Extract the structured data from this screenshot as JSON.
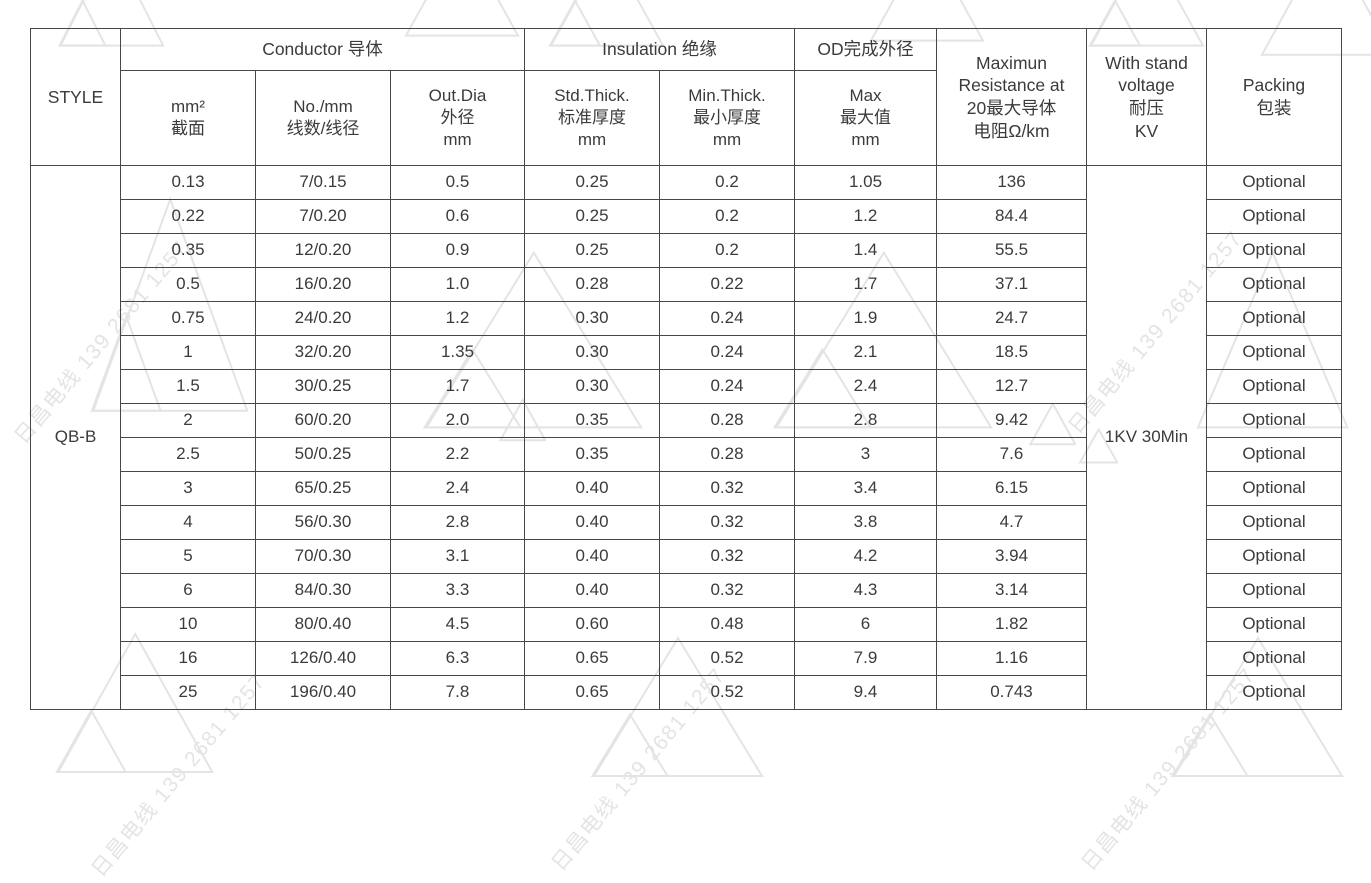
{
  "page": {
    "background": "#ffffff",
    "border_color": "#474747",
    "text_color": "#3b3b3b",
    "watermark_color": "#e4e4e4"
  },
  "watermark": {
    "text": "日昌电线 139 2681 1257"
  },
  "table": {
    "style_header": "STYLE",
    "style_value": "QB-B",
    "voltage_value": "1KV 30Min",
    "group_headers": {
      "conductor": "Conductor 导体",
      "insulation": "Insulation 绝缘",
      "od": "OD完成外径"
    },
    "col_headers": {
      "mm2": "mm²\n截面",
      "no_mm": "No./mm\n线数/线径",
      "out_dia": "Out.Dia\n外径\nmm",
      "std_thick": "Std.Thick.\n标准厚度\nmm",
      "min_thick": "Min.Thick.\n最小厚度\nmm",
      "max": "Max\n最大值\nmm",
      "resistance": "Maximun\nResistance at\n20最大导体\n电阻Ω/km",
      "voltage": "With stand\nvoltage\n耐压\nKV",
      "packing": "Packing\n包装"
    },
    "rows": [
      [
        "0.13",
        "7/0.15",
        "0.5",
        "0.25",
        "0.2",
        "1.05",
        "136",
        "Optional"
      ],
      [
        "0.22",
        "7/0.20",
        "0.6",
        "0.25",
        "0.2",
        "1.2",
        "84.4",
        "Optional"
      ],
      [
        "0.35",
        "12/0.20",
        "0.9",
        "0.25",
        "0.2",
        "1.4",
        "55.5",
        "Optional"
      ],
      [
        "0.5",
        "16/0.20",
        "1.0",
        "0.28",
        "0.22",
        "1.7",
        "37.1",
        "Optional"
      ],
      [
        "0.75",
        "24/0.20",
        "1.2",
        "0.30",
        "0.24",
        "1.9",
        "24.7",
        "Optional"
      ],
      [
        "1",
        "32/0.20",
        "1.35",
        "0.30",
        "0.24",
        "2.1",
        "18.5",
        "Optional"
      ],
      [
        "1.5",
        "30/0.25",
        "1.7",
        "0.30",
        "0.24",
        "2.4",
        "12.7",
        "Optional"
      ],
      [
        "2",
        "60/0.20",
        "2.0",
        "0.35",
        "0.28",
        "2.8",
        "9.42",
        "Optional"
      ],
      [
        "2.5",
        "50/0.25",
        "2.2",
        "0.35",
        "0.28",
        "3",
        "7.6",
        "Optional"
      ],
      [
        "3",
        "65/0.25",
        "2.4",
        "0.40",
        "0.32",
        "3.4",
        "6.15",
        "Optional"
      ],
      [
        "4",
        "56/0.30",
        "2.8",
        "0.40",
        "0.32",
        "3.8",
        "4.7",
        "Optional"
      ],
      [
        "5",
        "70/0.30",
        "3.1",
        "0.40",
        "0.32",
        "4.2",
        "3.94",
        "Optional"
      ],
      [
        "6",
        "84/0.30",
        "3.3",
        "0.40",
        "0.32",
        "4.3",
        "3.14",
        "Optional"
      ],
      [
        "10",
        "80/0.40",
        "4.5",
        "0.60",
        "0.48",
        "6",
        "1.82",
        "Optional"
      ],
      [
        "16",
        "126/0.40",
        "6.3",
        "0.65",
        "0.52",
        "7.9",
        "1.16",
        "Optional"
      ],
      [
        "25",
        "196/0.40",
        "7.8",
        "0.65",
        "0.52",
        "9.4",
        "0.743",
        "Optional"
      ]
    ]
  }
}
